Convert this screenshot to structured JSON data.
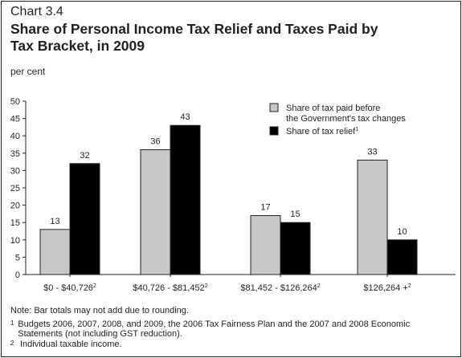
{
  "header": {
    "chart_number": "Chart 3.4",
    "title": "Share of Personal Income Tax Relief and Taxes Paid by Tax Bracket, in 2009"
  },
  "chart_data": {
    "type": "bar",
    "title": "Share of Personal Income Tax Relief and Taxes Paid by Tax Bracket, in 2009",
    "ylabel": "per cent",
    "xlabel": "",
    "ylim": [
      0,
      50
    ],
    "yticks": [
      0,
      5,
      10,
      15,
      20,
      25,
      30,
      35,
      40,
      45,
      50
    ],
    "grid": false,
    "legend_position": "top-right",
    "categories": [
      "$0 - $40,726",
      "$40,726 - $81,452",
      "$81,452 - $126,264",
      "$126,264 +"
    ],
    "category_superscript": "2",
    "series": [
      {
        "name": "Share of tax paid before the Government's tax changes",
        "color": "#c8c8c8",
        "values": [
          13,
          36,
          17,
          33
        ]
      },
      {
        "name": "Share of tax relief",
        "name_superscript": "1",
        "color": "#000000",
        "values": [
          32,
          43,
          15,
          10
        ]
      }
    ]
  },
  "legend": {
    "item1_line1": "Share of tax paid before",
    "item1_line2": "the Government's tax changes",
    "item2": "Share of tax relief",
    "item2_sup": "1"
  },
  "notes": {
    "note": "Note: Bar totals may not add due to rounding.",
    "fn1_mark": "1",
    "fn1_text": "Budgets 2006, 2007, 2008, and 2009, the 2006 Tax Fairness Plan and the 2007 and 2008 Economic Statements (not including GST reduction).",
    "fn2_mark": "2",
    "fn2_text": "Individual taxable income."
  }
}
